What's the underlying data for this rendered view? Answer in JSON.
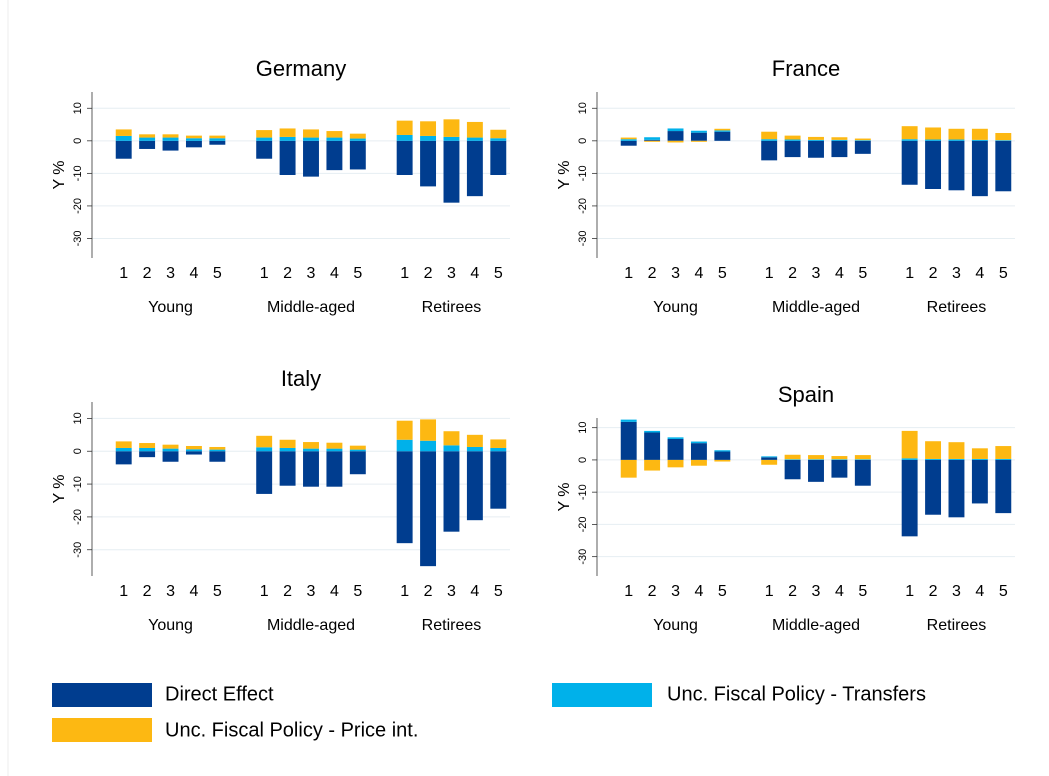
{
  "chart_data": [
    {
      "type": "bar",
      "stacked": true,
      "title": "Germany",
      "ylabel": "Y %",
      "categories": [
        "1",
        "2",
        "3",
        "4",
        "5",
        "1",
        "2",
        "3",
        "4",
        "5",
        "1",
        "2",
        "3",
        "4",
        "5"
      ],
      "groups": [
        "Young",
        "Middle-aged",
        "Retirees"
      ],
      "series": [
        {
          "name": "Direct Effect",
          "color": "#003d8f",
          "values": [
            -5.5,
            -2.5,
            -3,
            -2,
            -1.2,
            -5.5,
            -10.5,
            -11,
            -9,
            -8.8,
            -10.5,
            -14,
            -19,
            -17,
            -10.5
          ]
        },
        {
          "name": "Unc. Fiscal Policy - Transfers",
          "color": "#00b1ea",
          "values": [
            1.5,
            1,
            1,
            0.8,
            0.8,
            1,
            1.2,
            1,
            1,
            0.7,
            1.8,
            1.5,
            1.2,
            1,
            0.8
          ]
        },
        {
          "name": "Unc. Fiscal Policy - Price int.",
          "color": "#fdb812",
          "values": [
            2,
            1,
            1,
            0.8,
            0.8,
            2.3,
            2.6,
            2.5,
            2,
            1.5,
            4.4,
            4.5,
            5.4,
            4.8,
            2.6
          ]
        }
      ],
      "ylim": [
        -36,
        15
      ],
      "yticks": [
        10,
        0,
        -10,
        -20,
        -30
      ],
      "grid": true
    },
    {
      "type": "bar",
      "stacked": true,
      "title": "France",
      "ylabel": "Y %",
      "categories": [
        "1",
        "2",
        "3",
        "4",
        "5",
        "1",
        "2",
        "3",
        "4",
        "5",
        "1",
        "2",
        "3",
        "4",
        "5"
      ],
      "groups": [
        "Young",
        "Middle-aged",
        "Retirees"
      ],
      "series": [
        {
          "name": "Direct Effect",
          "color": "#003d8f",
          "values": [
            -1.5,
            0.3,
            3,
            2.5,
            2.8,
            -6,
            -5,
            -5.2,
            -5,
            -4,
            -13.5,
            -14.8,
            -15.2,
            -17,
            -15.5
          ]
        },
        {
          "name": "Unc. Fiscal Policy - Transfers",
          "color": "#00b1ea",
          "values": [
            0.5,
            0.8,
            0.8,
            0.6,
            0.4,
            0.5,
            0.4,
            0.3,
            0.3,
            0.2,
            0.5,
            0.4,
            0.4,
            0.3,
            0.2
          ]
        },
        {
          "name": "Unc. Fiscal Policy - Price int.",
          "color": "#fdb812",
          "values": [
            0.5,
            -0.3,
            -0.5,
            -0.3,
            0.5,
            2.3,
            1.2,
            0.9,
            0.8,
            0.5,
            4,
            3.7,
            3.3,
            3.4,
            2.2
          ]
        }
      ],
      "ylim": [
        -36,
        15
      ],
      "yticks": [
        10,
        0,
        -10,
        -20,
        -30
      ],
      "grid": true
    },
    {
      "type": "bar",
      "stacked": true,
      "title": "Italy",
      "ylabel": "Y %",
      "categories": [
        "1",
        "2",
        "3",
        "4",
        "5",
        "1",
        "2",
        "3",
        "4",
        "5",
        "1",
        "2",
        "3",
        "4",
        "5"
      ],
      "groups": [
        "Young",
        "Middle-aged",
        "Retirees"
      ],
      "series": [
        {
          "name": "Direct Effect",
          "color": "#003d8f",
          "values": [
            -4,
            -1.8,
            -3.2,
            -1,
            -3.2,
            -13,
            -10.5,
            -10.8,
            -10.8,
            -7,
            -28,
            -35,
            -24.5,
            -21,
            -17.5
          ]
        },
        {
          "name": "Unc. Fiscal Policy - Transfers",
          "color": "#00b1ea",
          "values": [
            1,
            1,
            0.8,
            0.6,
            0.5,
            1.2,
            1,
            0.8,
            0.8,
            0.5,
            3.5,
            3.2,
            1.8,
            1.3,
            1
          ]
        },
        {
          "name": "Unc. Fiscal Policy - Price int.",
          "color": "#fdb812",
          "values": [
            2,
            1.5,
            1.2,
            1,
            0.8,
            3.5,
            2.5,
            2,
            1.8,
            1.2,
            5.8,
            6.5,
            4.3,
            3.7,
            2.6
          ]
        }
      ],
      "ylim": [
        -38,
        15
      ],
      "yticks": [
        10,
        0,
        -10,
        -20,
        -30
      ],
      "grid": true
    },
    {
      "type": "bar",
      "stacked": true,
      "title": "Spain",
      "ylabel": "Y %",
      "categories": [
        "1",
        "2",
        "3",
        "4",
        "5",
        "1",
        "2",
        "3",
        "4",
        "5",
        "1",
        "2",
        "3",
        "4",
        "5"
      ],
      "groups": [
        "Young",
        "Middle-aged",
        "Retirees"
      ],
      "series": [
        {
          "name": "Direct Effect",
          "color": "#003d8f",
          "values": [
            11.8,
            8.5,
            6.5,
            5.2,
            2.6,
            0.8,
            -6,
            -6.8,
            -5.5,
            -8,
            -23.7,
            -17,
            -17.8,
            -13.5,
            -16.5
          ]
        },
        {
          "name": "Unc. Fiscal Policy - Transfers",
          "color": "#00b1ea",
          "values": [
            0.7,
            0.5,
            0.5,
            0.5,
            0.4,
            0.3,
            0.2,
            0.2,
            0.2,
            0.2,
            0.5,
            0.3,
            0.3,
            0.3,
            0.3
          ]
        },
        {
          "name": "Unc. Fiscal Policy - Price int.",
          "color": "#fdb812",
          "values": [
            -5.5,
            -3.3,
            -2.3,
            -1.8,
            -0.5,
            -1.5,
            1.4,
            1.3,
            1,
            1.3,
            8.5,
            5.5,
            5.2,
            3.3,
            4
          ]
        }
      ],
      "ylim": [
        -36,
        13
      ],
      "yticks": [
        10,
        0,
        -10,
        -20,
        -30
      ],
      "grid": true
    }
  ]
}
